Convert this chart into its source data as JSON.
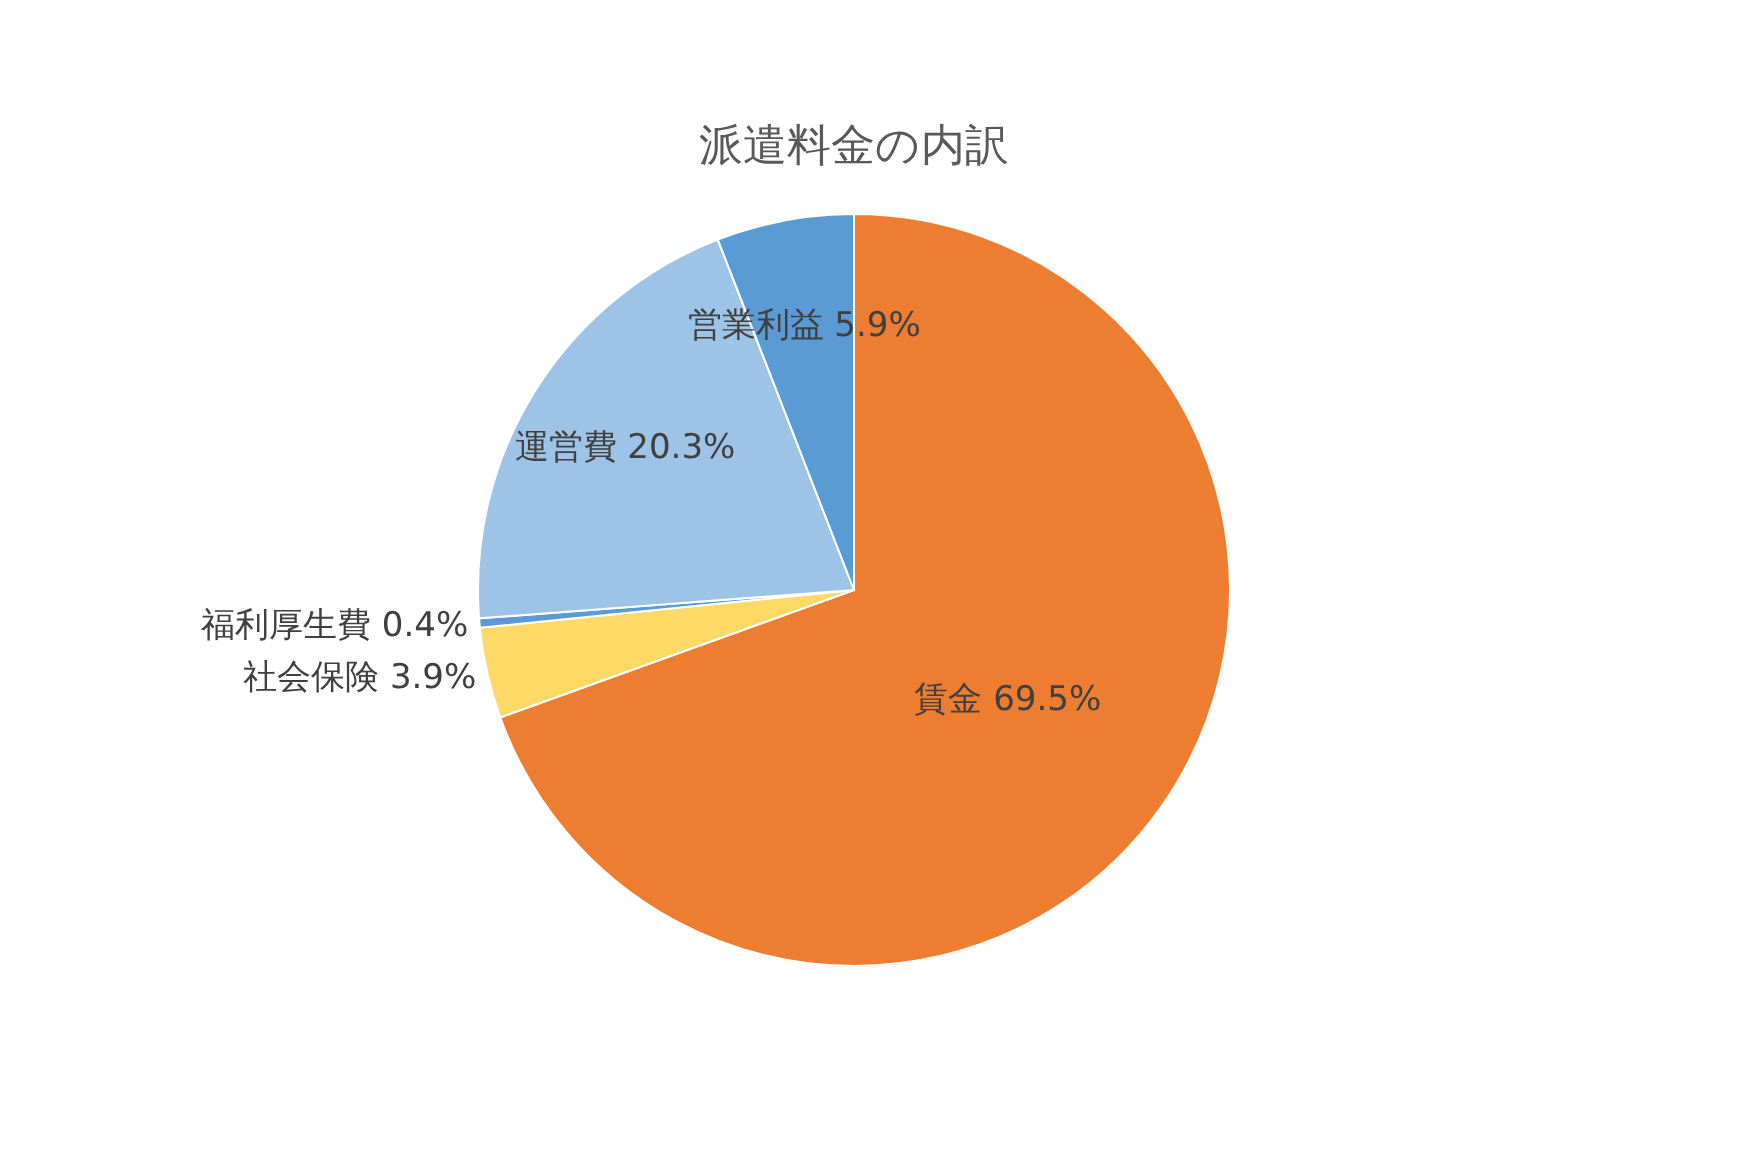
{
  "chart_data": {
    "type": "pie",
    "title": "派遣料金の内訳",
    "categories": [
      "賃金",
      "社会保険",
      "福利厚生費",
      "運営費",
      "営業利益"
    ],
    "values": [
      69.5,
      3.9,
      0.4,
      20.3,
      5.9
    ],
    "value_labels": [
      "69.5%",
      "3.9%",
      "0.4%",
      "20.3%",
      "5.9%"
    ],
    "colors": [
      "#ed7d31",
      "#ffd966",
      "#5b9bd5",
      "#9dc3e6",
      "#5b9bd5"
    ],
    "legend": false
  }
}
